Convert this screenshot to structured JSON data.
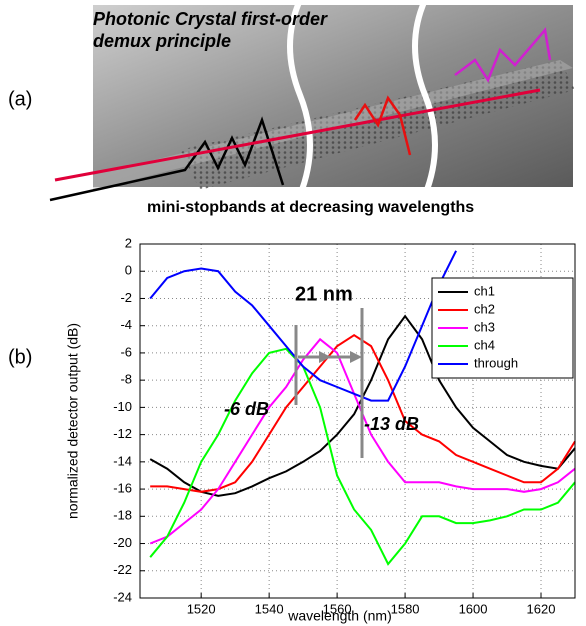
{
  "panel_a": {
    "label": "(a)",
    "title_lines": [
      "Photonic Crystal first-order",
      "demux principle"
    ],
    "caption": "mini-stopbands at decreasing wavelengths"
  },
  "chart_data": {
    "type": "line",
    "panel_label": "(b)",
    "x_label": "wavelength (nm)",
    "y_label": "normalized detector output (dB)",
    "annotations": [
      "21 nm",
      "-6 dB",
      "-13 dB"
    ],
    "x": [
      1505,
      1510,
      1515,
      1520,
      1525,
      1530,
      1535,
      1540,
      1545,
      1550,
      1555,
      1560,
      1565,
      1570,
      1575,
      1580,
      1585,
      1590,
      1595,
      1600,
      1605,
      1610,
      1615,
      1620,
      1625,
      1630
    ],
    "series": [
      {
        "name": "ch1",
        "color": "#000000",
        "values": [
          -13.8,
          -14.5,
          -15.5,
          -16.2,
          -16.5,
          -16.3,
          -15.8,
          -15.2,
          -14.7,
          -14,
          -13.2,
          -12,
          -10.5,
          -8,
          -5,
          -3.3,
          -5,
          -8,
          -10,
          -11.5,
          -12.5,
          -13.5,
          -14,
          -14.3,
          -14.5,
          -13
        ]
      },
      {
        "name": "ch2",
        "color": "#ff0000",
        "values": [
          -15.8,
          -15.8,
          -16,
          -16.2,
          -16,
          -15.5,
          -14,
          -12,
          -10,
          -8.5,
          -7,
          -5.5,
          -4.7,
          -5.5,
          -8,
          -11,
          -12,
          -12.5,
          -13.5,
          -14,
          -14.5,
          -15,
          -15.5,
          -15.5,
          -14.5,
          -12.5
        ]
      },
      {
        "name": "ch3",
        "color": "#ff00ff",
        "values": [
          -20,
          -19.5,
          -18.5,
          -17.5,
          -16,
          -14,
          -12,
          -10,
          -8.5,
          -6.5,
          -5,
          -6,
          -9,
          -12,
          -14,
          -15.5,
          -15.5,
          -15.5,
          -15.8,
          -16,
          -16,
          -16,
          -16.2,
          -16,
          -15.5,
          -14.5
        ]
      },
      {
        "name": "ch4",
        "color": "#00ff00",
        "values": [
          -21,
          -19.5,
          -17,
          -14,
          -12,
          -9.5,
          -7.5,
          -6,
          -5.7,
          -7,
          -10,
          -15,
          -17.5,
          -19,
          -21.5,
          -20,
          -18,
          -18,
          -18.5,
          -18.5,
          -18.3,
          -18,
          -17.5,
          -17.5,
          -17,
          -15.5
        ]
      },
      {
        "name": "through",
        "color": "#0000ff",
        "values": [
          -2,
          -0.5,
          0,
          0.2,
          0,
          -1.5,
          -2.5,
          -4,
          -5.5,
          -7,
          -8,
          -8.5,
          -9,
          -9.5,
          -9.5,
          -7,
          -4,
          -1,
          1.5,
          null,
          null,
          null,
          null,
          null,
          null,
          null
        ]
      }
    ],
    "xlim": [
      1502,
      1630
    ],
    "xticks": [
      1520,
      1540,
      1560,
      1580,
      1600,
      1620
    ],
    "ylim": [
      -24,
      2
    ],
    "yticks": [
      2,
      0,
      -2,
      -4,
      -6,
      -8,
      -10,
      -12,
      -14,
      -16,
      -18,
      -20,
      -22,
      -24
    ],
    "grid": true,
    "legend": "upper right"
  }
}
